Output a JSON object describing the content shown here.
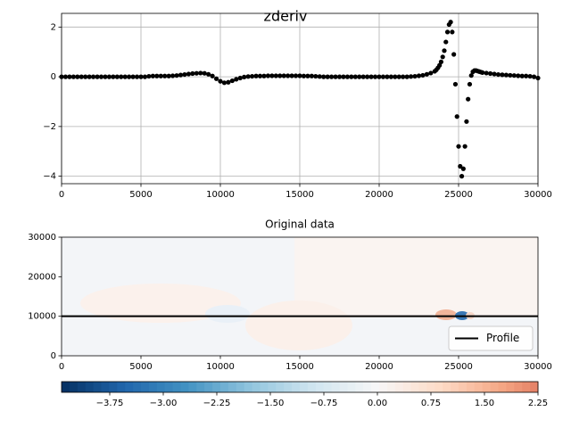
{
  "chart_data": [
    {
      "type": "scatter",
      "title": "zderiv",
      "color": "#000000",
      "grid": true,
      "xlim": [
        0,
        30000
      ],
      "ylim": [
        -4.3,
        2.55
      ],
      "xticks": [
        0,
        5000,
        10000,
        15000,
        20000,
        25000,
        30000
      ],
      "yticks": [
        {
          "value": -4,
          "label": "−4"
        },
        {
          "value": -2,
          "label": "−2"
        },
        0,
        2
      ],
      "x": [
        0,
        250,
        500,
        750,
        1000,
        1250,
        1500,
        1750,
        2000,
        2250,
        2500,
        2750,
        3000,
        3250,
        3500,
        3750,
        4000,
        4250,
        4500,
        4750,
        5000,
        5250,
        5500,
        5750,
        6000,
        6250,
        6500,
        6750,
        7000,
        7250,
        7500,
        7750,
        8000,
        8250,
        8500,
        8750,
        9000,
        9250,
        9500,
        9750,
        10000,
        10250,
        10500,
        10750,
        11000,
        11250,
        11500,
        11750,
        12000,
        12250,
        12500,
        12750,
        13000,
        13250,
        13500,
        13750,
        14000,
        14250,
        14500,
        14750,
        15000,
        15250,
        15500,
        15750,
        16000,
        16250,
        16500,
        16750,
        17000,
        17250,
        17500,
        17750,
        18000,
        18250,
        18500,
        18750,
        19000,
        19250,
        19500,
        19750,
        20000,
        20250,
        20500,
        20750,
        21000,
        21250,
        21500,
        21750,
        22000,
        22250,
        22500,
        22750,
        23000,
        23250,
        23500,
        23600,
        23700,
        23800,
        23900,
        24000,
        24100,
        24200,
        24300,
        24400,
        24500,
        24600,
        24700,
        24800,
        24900,
        25000,
        25100,
        25200,
        25300,
        25400,
        25500,
        25600,
        25700,
        25800,
        25900,
        26000,
        26100,
        26200,
        26300,
        26400,
        26500,
        26750,
        27000,
        27250,
        27500,
        27750,
        28000,
        28250,
        28500,
        28750,
        29000,
        29250,
        29500,
        29750,
        30000
      ],
      "values": [
        0,
        0,
        0,
        0,
        0,
        0,
        0,
        0,
        0,
        0,
        0,
        0,
        0,
        0,
        0,
        0,
        0,
        0,
        0,
        0,
        0,
        0,
        0.02,
        0.03,
        0.03,
        0.03,
        0.03,
        0.03,
        0.04,
        0.05,
        0.07,
        0.09,
        0.11,
        0.13,
        0.14,
        0.15,
        0.14,
        0.1,
        0.03,
        -0.08,
        -0.18,
        -0.24,
        -0.22,
        -0.16,
        -0.1,
        -0.05,
        -0.01,
        0.01,
        0.02,
        0.03,
        0.03,
        0.03,
        0.04,
        0.04,
        0.04,
        0.04,
        0.04,
        0.04,
        0.04,
        0.04,
        0.04,
        0.03,
        0.03,
        0.03,
        0.02,
        0.01,
        0,
        0,
        0,
        0,
        0,
        0,
        0,
        0,
        0,
        0,
        0,
        0,
        0,
        0,
        0,
        0,
        0,
        0,
        0,
        0,
        0,
        0,
        0.01,
        0.02,
        0.04,
        0.06,
        0.1,
        0.15,
        0.22,
        0.28,
        0.36,
        0.46,
        0.6,
        0.8,
        1.05,
        1.4,
        1.8,
        2.1,
        2.2,
        1.8,
        0.9,
        -0.3,
        -1.6,
        -2.8,
        -3.6,
        -4.0,
        -3.7,
        -2.8,
        -1.8,
        -0.9,
        -0.3,
        0.05,
        0.2,
        0.25,
        0.25,
        0.23,
        0.21,
        0.19,
        0.17,
        0.15,
        0.13,
        0.11,
        0.09,
        0.08,
        0.07,
        0.06,
        0.05,
        0.04,
        0.03,
        0.03,
        0.02,
        0,
        -0.05
      ]
    },
    {
      "type": "image",
      "title": "Original data",
      "legend": "lower right",
      "xlim": [
        0,
        30000
      ],
      "ylim": [
        0,
        30000
      ],
      "xticks": [
        0,
        5000,
        10000,
        15000,
        20000,
        25000,
        30000
      ],
      "yticks": [
        0,
        10000,
        20000,
        30000
      ],
      "series": [
        {
          "name": "Profile",
          "color": "#000000",
          "x": [
            0,
            30000
          ],
          "values": [
            10000,
            10000
          ]
        }
      ]
    },
    {
      "type": "colorbar",
      "colormap": "RdBu_r",
      "xlim": [
        -4.425,
        2.25
      ],
      "xticks": [
        {
          "value": -3.75,
          "label": "−3.75"
        },
        {
          "value": -3,
          "label": "−3.00"
        },
        {
          "value": -2.25,
          "label": "−2.25"
        },
        {
          "value": -1.5,
          "label": "−1.50"
        },
        {
          "value": -0.75,
          "label": "−0.75"
        },
        {
          "value": 0,
          "label": "0.00"
        },
        0.75,
        {
          "value": 1.5,
          "label": "1.50"
        },
        2.25
      ]
    }
  ]
}
